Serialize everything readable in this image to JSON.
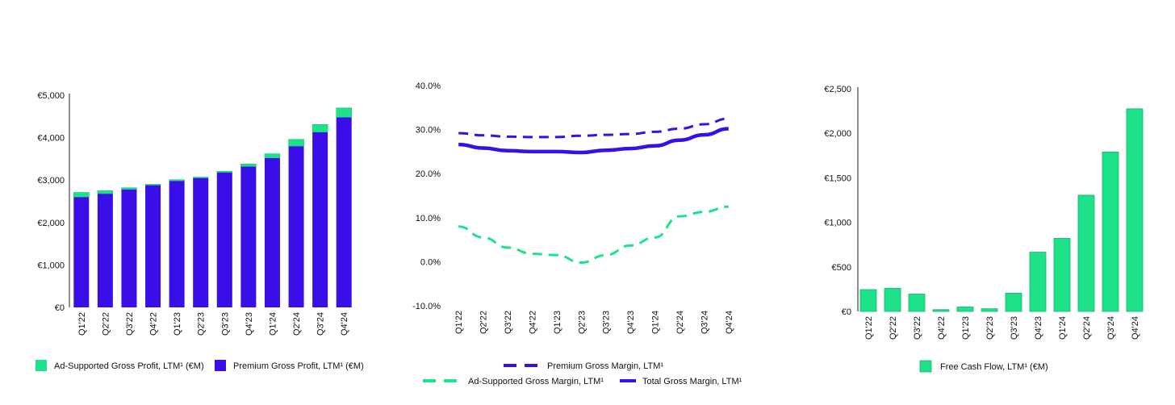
{
  "chart_data": [
    {
      "type": "bar",
      "stacked": true,
      "categories": [
        "Q1'22",
        "Q2'22",
        "Q3'22",
        "Q4'22",
        "Q1'23",
        "Q2'23",
        "Q3'23",
        "Q4'23",
        "Q1'24",
        "Q2'24",
        "Q3'24",
        "Q4'24"
      ],
      "series": [
        {
          "name": "Premium Gross Profit, LTM¹  (€M)",
          "color": "#3a0ee8",
          "values": [
            2600,
            2680,
            2780,
            2880,
            2980,
            3050,
            3180,
            3320,
            3520,
            3800,
            4130,
            4480
          ]
        },
        {
          "name": "Ad-Supported Gross Profit, LTM¹ (€M)",
          "color": "#1ee28a",
          "values": [
            110,
            70,
            40,
            20,
            30,
            20,
            30,
            60,
            100,
            160,
            180,
            220
          ]
        }
      ],
      "legend_order": [
        1,
        0
      ],
      "y_ticks": [
        0,
        1000,
        2000,
        3000,
        4000,
        5000
      ],
      "y_tick_labels": [
        "€0",
        "€1,000",
        "€2,000",
        "€3,000",
        "€4,000",
        "€5,000"
      ],
      "ylim": [
        0,
        5000
      ],
      "legend": "bottom",
      "grid": false
    },
    {
      "type": "line",
      "categories": [
        "Q1'22",
        "Q2'22",
        "Q3'22",
        "Q4'22",
        "Q1'23",
        "Q2'23",
        "Q3'23",
        "Q4'23",
        "Q1'24",
        "Q2'24",
        "Q3'24",
        "Q4'24"
      ],
      "series": [
        {
          "name": "Premium Gross Margin, LTM¹",
          "color": "#3a0ee8",
          "style": "dashed",
          "values": [
            29.2,
            28.7,
            28.4,
            28.3,
            28.3,
            28.6,
            28.8,
            29.0,
            29.5,
            30.2,
            31.2,
            32.5
          ]
        },
        {
          "name": "Ad-Supported Gross Margin, LTM¹",
          "color": "#1ee28a",
          "style": "dashed",
          "values": [
            8.0,
            5.5,
            3.2,
            1.8,
            1.5,
            -0.2,
            1.5,
            3.7,
            5.5,
            10.3,
            11.3,
            12.5
          ]
        },
        {
          "name": "Total Gross Margin, LTM¹",
          "color": "#3a0ee8",
          "style": "solid",
          "values": [
            26.6,
            25.8,
            25.2,
            25.0,
            25.0,
            24.8,
            25.3,
            25.7,
            26.3,
            27.6,
            28.8,
            30.2
          ]
        }
      ],
      "y_ticks": [
        -10,
        0,
        10,
        20,
        30,
        40
      ],
      "y_tick_labels": [
        "-10.0%",
        "0.0%",
        "10.0%",
        "20.0%",
        "30.0%",
        "40.0%"
      ],
      "ylim": [
        -10,
        40
      ],
      "legend": "bottom",
      "grid": false
    },
    {
      "type": "bar",
      "categories": [
        "Q1'22",
        "Q2'22",
        "Q3'22",
        "Q4'22",
        "Q1'23",
        "Q2'23",
        "Q3'23",
        "Q4'23",
        "Q1'24",
        "Q2'24",
        "Q3'24",
        "Q4'24"
      ],
      "series": [
        {
          "name": "Free Cash Flow, LTM¹ (€M)",
          "color": "#1ee28a",
          "values": [
            245,
            260,
            195,
            20,
            50,
            30,
            205,
            665,
            820,
            1305,
            1790,
            2275
          ]
        }
      ],
      "y_ticks": [
        0,
        500,
        1000,
        1500,
        2000,
        2500
      ],
      "y_tick_labels": [
        "€0",
        "€500",
        "€1,000",
        "€1,500",
        "€2,000",
        "€2,500"
      ],
      "ylim": [
        0,
        2500
      ],
      "legend": "bottom",
      "grid": false
    }
  ]
}
